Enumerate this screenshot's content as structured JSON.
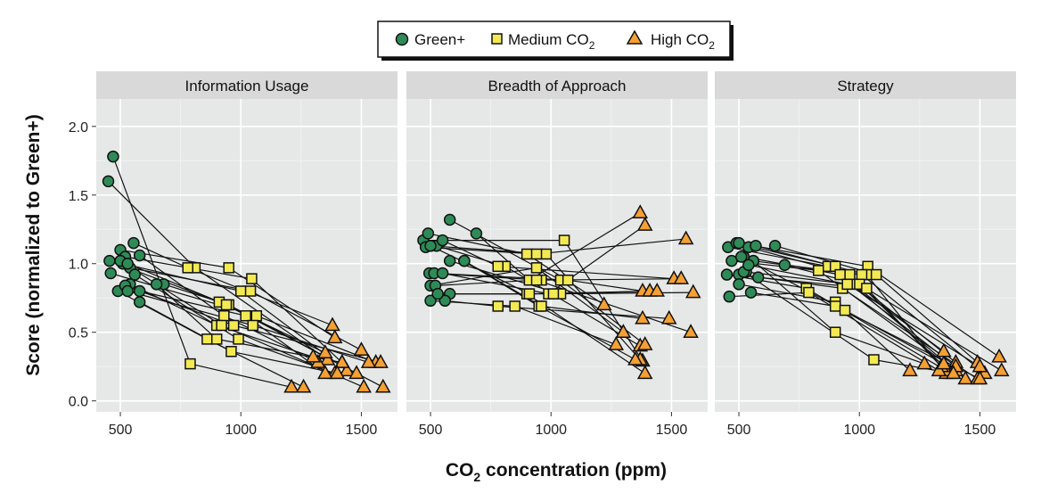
{
  "chart_data": {
    "type": "scatter",
    "xlabel": "CO₂ concentration (ppm)",
    "ylabel": "Score (normalized to Green+)",
    "xlim": [
      400,
      1650
    ],
    "ylim": [
      -0.08,
      2.2
    ],
    "xticks": [
      500,
      1000,
      1500
    ],
    "yticks": [
      0.0,
      0.5,
      1.0,
      1.5,
      2.0
    ],
    "ytick_labels": [
      "0.0",
      "0.5",
      "1.0",
      "1.5",
      "2.0"
    ],
    "grid": true,
    "legend_position": "top-center",
    "series": [
      {
        "name": "Green+",
        "marker": "circle",
        "color": "#2e8b57"
      },
      {
        "name": "Medium CO₂",
        "marker": "square",
        "color": "#f3ea53"
      },
      {
        "name": "High CO₂",
        "marker": "triangle",
        "color": "#f5a033"
      }
    ],
    "panels": [
      {
        "title": "Information Usage",
        "participants": [
          [
            [
              470,
              1.78
            ],
            [
              790,
              0.27
            ],
            [
              1210,
              0.1
            ]
          ],
          [
            [
              450,
              1.6
            ],
            [
              810,
              0.97
            ],
            [
              1360,
              0.3
            ]
          ],
          [
            [
              555,
              1.15
            ],
            [
              780,
              0.97
            ],
            [
              1380,
              0.55
            ]
          ],
          [
            [
              500,
              1.1
            ],
            [
              950,
              0.97
            ],
            [
              1390,
              0.46
            ]
          ],
          [
            [
              520,
              1.05
            ],
            [
              1045,
              0.89
            ],
            [
              1420,
              0.28
            ]
          ],
          [
            [
              455,
              1.02
            ],
            [
              910,
              0.72
            ],
            [
              1350,
              0.35
            ]
          ],
          [
            [
              510,
              1.0
            ],
            [
              1000,
              0.8
            ],
            [
              1440,
              0.22
            ]
          ],
          [
            [
              540,
              0.97
            ],
            [
              1040,
              0.8
            ],
            [
              1500,
              0.37
            ]
          ],
          [
            [
              580,
              1.06
            ],
            [
              930,
              0.62
            ],
            [
              1320,
              0.28
            ]
          ],
          [
            [
              460,
              0.93
            ],
            [
              1065,
              0.62
            ],
            [
              1560,
              0.28
            ]
          ],
          [
            [
              560,
              0.92
            ],
            [
              990,
              0.45
            ],
            [
              1390,
              0.2
            ]
          ],
          [
            [
              490,
              0.8
            ],
            [
              860,
              0.45
            ],
            [
              1260,
              0.1
            ]
          ],
          [
            [
              540,
              0.85
            ],
            [
              900,
              0.55
            ],
            [
              1300,
              0.32
            ]
          ],
          [
            [
              580,
              0.8
            ],
            [
              1020,
              0.62
            ],
            [
              1350,
              0.2
            ]
          ],
          [
            [
              680,
              0.85
            ],
            [
              950,
              0.7
            ],
            [
              1480,
              0.2
            ]
          ],
          [
            [
              650,
              0.85
            ],
            [
              900,
              0.45
            ],
            [
              1420,
              0.28
            ]
          ],
          [
            [
              580,
              0.72
            ],
            [
              960,
              0.36
            ],
            [
              1400,
              0.2
            ]
          ],
          [
            [
              520,
              0.84
            ],
            [
              970,
              0.55
            ],
            [
              1580,
              0.28
            ]
          ],
          [
            [
              530,
              0.8
            ],
            [
              1050,
              0.55
            ],
            [
              1530,
              0.28
            ]
          ],
          [
            [
              500,
              1.02
            ],
            [
              920,
              0.55
            ],
            [
              1510,
              0.1
            ]
          ],
          [
            [
              530,
              1.0
            ],
            [
              940,
              0.7
            ],
            [
              1590,
              0.1
            ]
          ]
        ]
      },
      {
        "title": "Breadth of Approach",
        "participants": [
          [
            [
              470,
              1.17
            ],
            [
              1055,
              1.17
            ],
            [
              1380,
              0.29
            ]
          ],
          [
            [
              490,
              1.22
            ],
            [
              900,
              1.07
            ],
            [
              1220,
              0.7
            ]
          ],
          [
            [
              500,
              1.13
            ],
            [
              980,
              1.07
            ],
            [
              1370,
              0.3
            ]
          ],
          [
            [
              480,
              1.12
            ],
            [
              940,
              1.07
            ],
            [
              1560,
              1.18
            ]
          ],
          [
            [
              525,
              1.13
            ],
            [
              810,
              0.98
            ],
            [
              1370,
              0.4
            ]
          ],
          [
            [
              550,
              1.17
            ],
            [
              780,
              0.98
            ],
            [
              1510,
              0.89
            ]
          ],
          [
            [
              580,
              1.32
            ],
            [
              1040,
              0.88
            ],
            [
              1390,
              0.41
            ]
          ],
          [
            [
              690,
              1.22
            ],
            [
              910,
              0.88
            ],
            [
              1370,
              1.37
            ]
          ],
          [
            [
              495,
              0.93
            ],
            [
              960,
              0.88
            ],
            [
              1540,
              0.89
            ]
          ],
          [
            [
              500,
              0.84
            ],
            [
              940,
              0.97
            ],
            [
              1300,
              0.5
            ]
          ],
          [
            [
              515,
              0.93
            ],
            [
              1070,
              0.88
            ],
            [
              1380,
              0.8
            ]
          ],
          [
            [
              550,
              0.93
            ],
            [
              990,
              0.78
            ],
            [
              1390,
              1.28
            ]
          ],
          [
            [
              580,
              0.78
            ],
            [
              900,
              0.78
            ],
            [
              1390,
              0.2
            ]
          ],
          [
            [
              580,
              1.02
            ],
            [
              1040,
              0.78
            ],
            [
              1410,
              0.8
            ]
          ],
          [
            [
              520,
              0.84
            ],
            [
              940,
              0.88
            ],
            [
              1580,
              0.5
            ]
          ],
          [
            [
              500,
              0.73
            ],
            [
              850,
              0.69
            ],
            [
              1270,
              0.41
            ]
          ],
          [
            [
              560,
              0.73
            ],
            [
              780,
              0.69
            ],
            [
              1490,
              0.6
            ]
          ],
          [
            [
              640,
              1.02
            ],
            [
              950,
              0.69
            ],
            [
              1350,
              0.3
            ]
          ],
          [
            [
              530,
              0.78
            ],
            [
              1010,
              0.78
            ],
            [
              1590,
              0.79
            ]
          ],
          [
            [
              500,
              1.13
            ],
            [
              910,
              0.78
            ],
            [
              1440,
              0.8
            ]
          ],
          [
            [
              640,
              1.02
            ],
            [
              960,
              0.69
            ],
            [
              1380,
              0.6
            ]
          ]
        ]
      },
      {
        "title": "Strategy",
        "participants": [
          [
            [
              455,
              1.12
            ],
            [
              870,
              0.98
            ],
            [
              1350,
              0.36
            ]
          ],
          [
            [
              490,
              1.15
            ],
            [
              900,
              0.98
            ],
            [
              1400,
              0.28
            ]
          ],
          [
            [
              500,
              1.15
            ],
            [
              1035,
              0.98
            ],
            [
              1580,
              0.32
            ]
          ],
          [
            [
              540,
              1.12
            ],
            [
              960,
              0.92
            ],
            [
              1380,
              0.2
            ]
          ],
          [
            [
              570,
              1.13
            ],
            [
              1030,
              0.92
            ],
            [
              1360,
              0.2
            ]
          ],
          [
            [
              650,
              1.13
            ],
            [
              1070,
              0.92
            ],
            [
              1490,
              0.28
            ]
          ],
          [
            [
              470,
              1.02
            ],
            [
              830,
              0.95
            ],
            [
              1400,
              0.22
            ]
          ],
          [
            [
              520,
              1.05
            ],
            [
              920,
              0.92
            ],
            [
              1440,
              0.16
            ]
          ],
          [
            [
              560,
              1.02
            ],
            [
              1010,
              0.92
            ],
            [
              1520,
              0.2
            ]
          ],
          [
            [
              690,
              0.99
            ],
            [
              1000,
              0.85
            ],
            [
              1590,
              0.22
            ]
          ],
          [
            [
              450,
              0.92
            ],
            [
              780,
              0.82
            ],
            [
              1360,
              0.22
            ]
          ],
          [
            [
              500,
              0.92
            ],
            [
              930,
              0.82
            ],
            [
              1490,
              0.16
            ]
          ],
          [
            [
              530,
              0.94
            ],
            [
              960,
              0.85
            ],
            [
              1400,
              0.25
            ]
          ],
          [
            [
              580,
              0.9
            ],
            [
              1030,
              0.82
            ],
            [
              1340,
              0.25
            ]
          ],
          [
            [
              460,
              0.76
            ],
            [
              790,
              0.79
            ],
            [
              1330,
              0.22
            ]
          ],
          [
            [
              500,
              0.85
            ],
            [
              900,
              0.72
            ],
            [
              1210,
              0.22
            ]
          ],
          [
            [
              550,
              0.79
            ],
            [
              900,
              0.69
            ],
            [
              1500,
              0.16
            ]
          ],
          [
            [
              510,
              1.05
            ],
            [
              940,
              0.66
            ],
            [
              1350,
              0.27
            ]
          ],
          [
            [
              560,
              1.02
            ],
            [
              900,
              0.5
            ],
            [
              1270,
              0.27
            ]
          ],
          [
            [
              520,
              0.94
            ],
            [
              1060,
              0.3
            ],
            [
              1390,
              0.2
            ]
          ],
          [
            [
              540,
              0.99
            ],
            [
              950,
              0.85
            ],
            [
              1500,
              0.25
            ]
          ]
        ]
      }
    ]
  }
}
